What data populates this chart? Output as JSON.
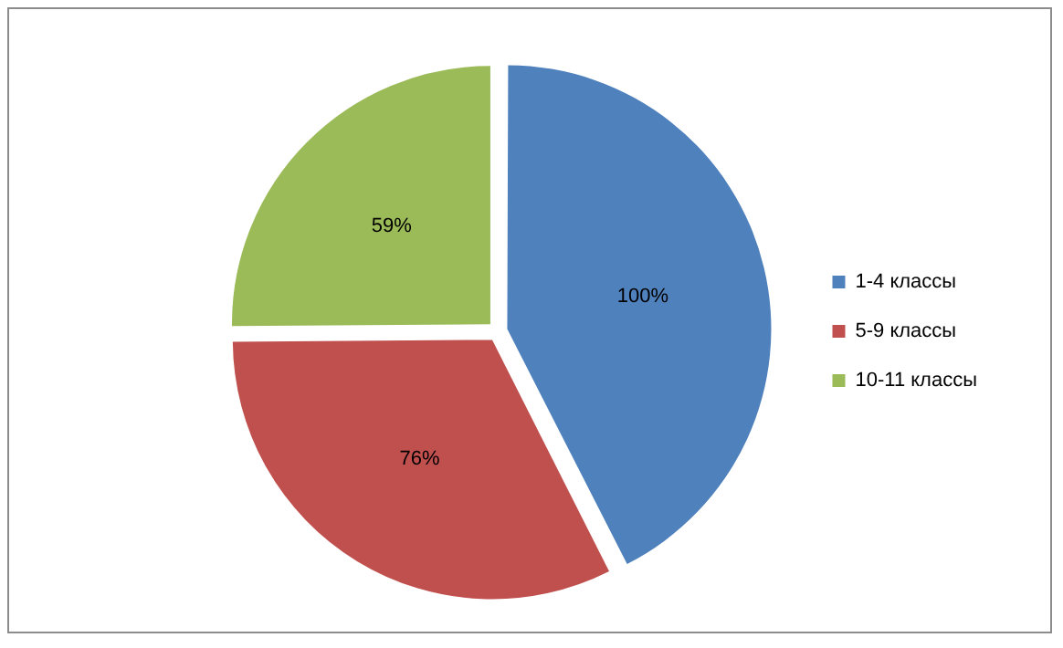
{
  "chart_data": {
    "type": "pie",
    "categories": [
      "1-4 классы",
      "5-9 классы",
      "10-11 классы"
    ],
    "values": [
      100,
      76,
      59
    ],
    "colors": [
      "#4f81bd",
      "#c0504d",
      "#9bbb59"
    ],
    "value_labels": [
      "100%",
      "76%",
      "59%"
    ],
    "legend": "right"
  }
}
